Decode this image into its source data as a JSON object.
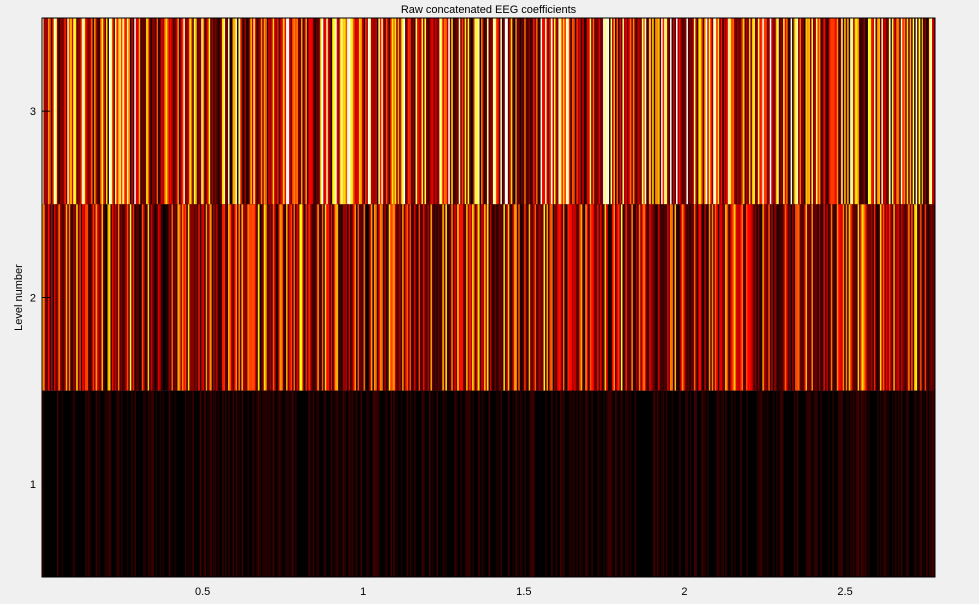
{
  "chart_data": {
    "type": "heatmap",
    "title": "Raw concatenated EEG coefficients",
    "xlabel": "",
    "ylabel": "Level number",
    "colormap": "hot",
    "background": "#f0f0f0",
    "axes_color": "#000000",
    "x_range": [
      0,
      2.78
    ],
    "y_range": [
      0.5,
      3.5
    ],
    "x_ticks": [
      0.5,
      1,
      1.5,
      2,
      2.5
    ],
    "x_tick_labels": [
      "0.5",
      "1",
      "1.5",
      "2",
      "2.5"
    ],
    "y_ticks": [
      1,
      2,
      3
    ],
    "y_tick_labels": [
      "1",
      "2",
      "3"
    ],
    "levels": [
      {
        "level": 3,
        "mean_intensity": 0.42,
        "max_intensity": 0.85
      },
      {
        "level": 2,
        "mean_intensity": 0.28,
        "max_intensity": 0.6
      },
      {
        "level": 1,
        "mean_intensity": 0.02,
        "max_intensity": 0.08
      }
    ],
    "grid": false
  }
}
